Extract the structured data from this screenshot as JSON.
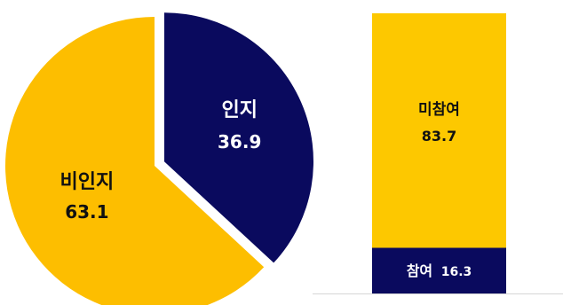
{
  "chart_data": [
    {
      "type": "pie",
      "categories": [
        "인지",
        "비인지"
      ],
      "values": [
        36.9,
        63.1
      ],
      "exploded": "인지",
      "colors": [
        "#0a0a5e",
        "#fdbe00"
      ],
      "label_text": {
        "aware_name": "인지",
        "aware_value": "36.9",
        "unaware_name": "비인지",
        "unaware_value": "63.1"
      }
    },
    {
      "type": "bar",
      "stacked": true,
      "categories": [
        "참여",
        "미참여"
      ],
      "values": [
        16.3,
        83.7
      ],
      "ylim": [
        0,
        100
      ],
      "colors": [
        "#0a0a5e",
        "#fdc800"
      ],
      "label_text": {
        "participated_name": "참여",
        "participated_value": "16.3",
        "not_participated_name": "미참여",
        "not_participated_value": "83.7"
      }
    }
  ]
}
